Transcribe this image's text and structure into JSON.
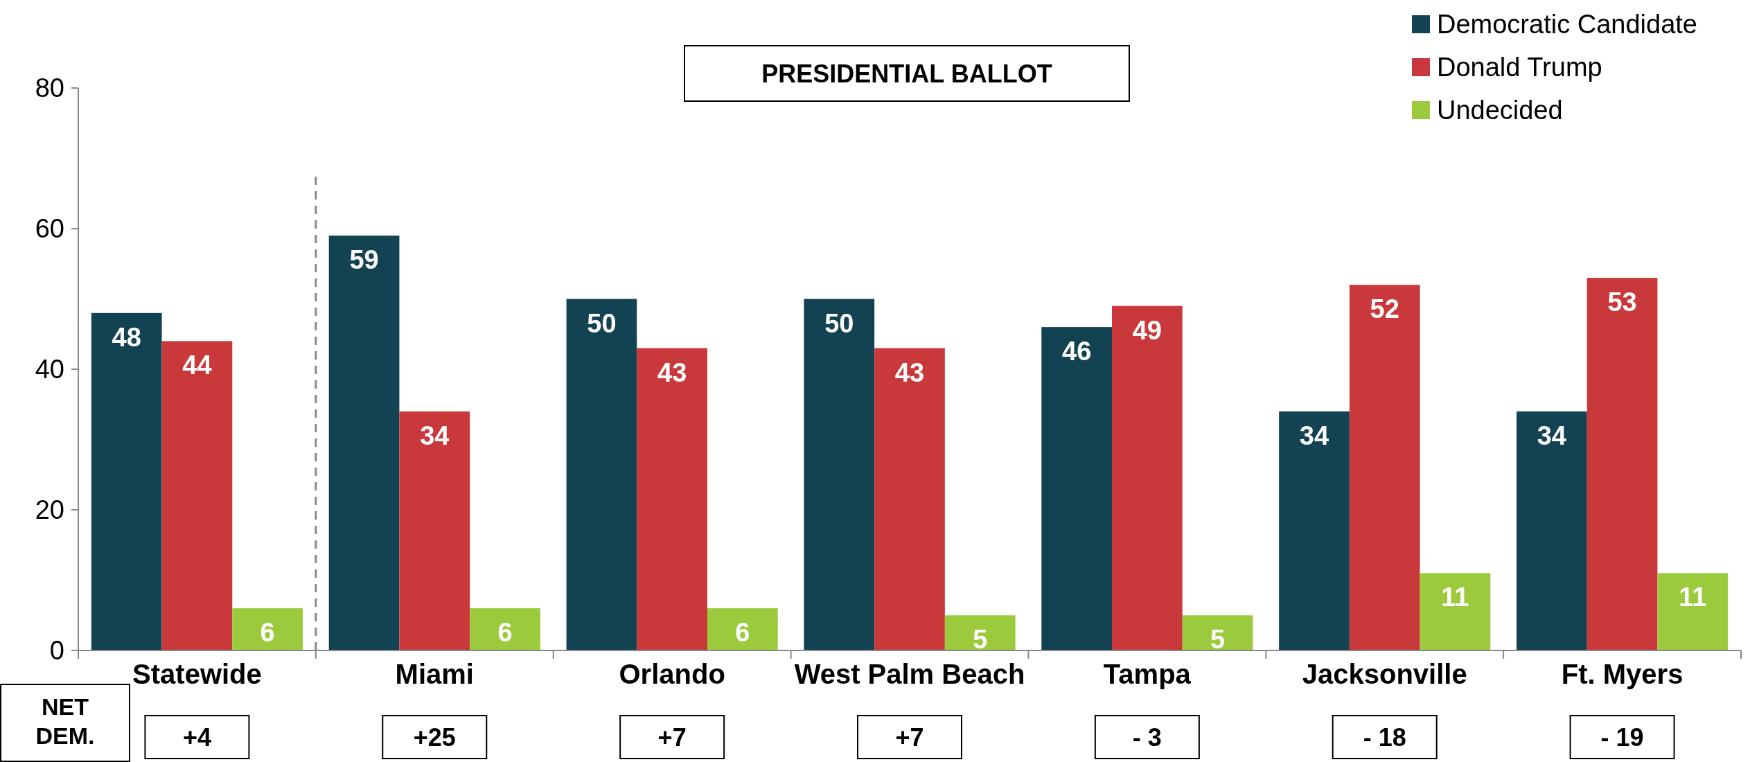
{
  "chart_data": {
    "type": "bar",
    "title": "PRESIDENTIAL BALLOT",
    "categories": [
      "Statewide",
      "Miami",
      "Orlando",
      "West Palm Beach",
      "Tampa",
      "Jacksonville",
      "Ft. Myers"
    ],
    "series": [
      {
        "name": "Democratic Candidate",
        "color": "#134252",
        "values": [
          48,
          59,
          50,
          50,
          46,
          34,
          34
        ]
      },
      {
        "name": "Donald Trump",
        "color": "#c9383a",
        "values": [
          44,
          34,
          43,
          43,
          49,
          52,
          53
        ]
      },
      {
        "name": "Undecided",
        "color": "#9bcb3c",
        "values": [
          6,
          6,
          6,
          5,
          5,
          11,
          11
        ]
      }
    ],
    "ylim": [
      0,
      80
    ],
    "yticks": [
      0,
      20,
      40,
      60,
      80
    ],
    "grid": false,
    "legend": "top right",
    "data_labels": true,
    "annotations": [
      "NET DEM.",
      "+4",
      "+25",
      "+7",
      "+7",
      "- 3",
      "- 18",
      "- 19"
    ]
  }
}
